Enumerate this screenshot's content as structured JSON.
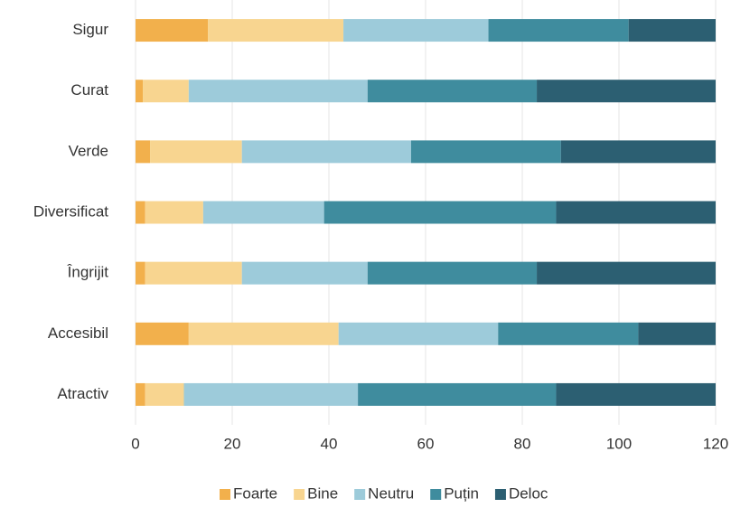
{
  "chart_data": {
    "type": "stacked-barh",
    "categories": [
      "Sigur",
      "Curat",
      "Verde",
      "Diversificat",
      "Îngrijit",
      "Accesibil",
      "Atractiv"
    ],
    "series": [
      {
        "name": "Foarte",
        "color": "#f2b04c",
        "values": [
          15,
          1.5,
          3,
          2,
          2,
          11,
          2
        ]
      },
      {
        "name": "Bine",
        "color": "#f8d590",
        "values": [
          28,
          9.5,
          19,
          12,
          20,
          31,
          8
        ]
      },
      {
        "name": "Neutru",
        "color": "#9dcbda",
        "values": [
          30,
          37,
          35,
          25,
          26,
          33,
          36
        ]
      },
      {
        "name": "Puțin",
        "color": "#3f8c9e",
        "values": [
          29,
          35,
          31,
          48,
          35,
          29,
          41
        ]
      },
      {
        "name": "Deloc",
        "color": "#2c5f72",
        "values": [
          18,
          37,
          32,
          33,
          37,
          16,
          33
        ]
      }
    ],
    "xlim": [
      0,
      120
    ],
    "xticks": [
      0,
      20,
      40,
      60,
      80,
      100,
      120
    ],
    "grid": true,
    "legend": "bottom"
  }
}
